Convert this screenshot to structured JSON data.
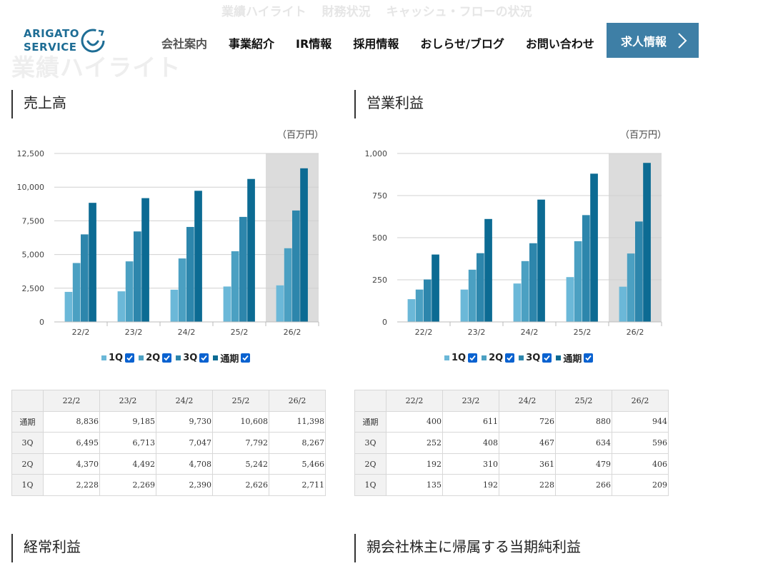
{
  "ghost": {
    "tabs": [
      "業績ハイライト",
      "財務状況",
      "キャッシュ・フローの状況"
    ],
    "title": "業績ハイライト"
  },
  "logo": {
    "line1": "ARIGATO",
    "line2": "SERVICE"
  },
  "nav": {
    "items": [
      "会社案内",
      "事業紹介",
      "IR情報",
      "採用情報",
      "おしらせ/ブログ",
      "お問い合わせ"
    ],
    "cta": "求人情報"
  },
  "colors": {
    "q1": "#6bb8d8",
    "q2": "#4ba0c2",
    "q3": "#2d86ac",
    "full": "#0c6b93",
    "accent": "#3e7fa6",
    "highlight": "#dcdcdc"
  },
  "legend": [
    "1Q",
    "2Q",
    "3Q",
    "通期"
  ],
  "sections": {
    "s1": "売上高",
    "s2": "営業利益",
    "s3": "経常利益",
    "s4": "親会社株主に帰属する当期純利益"
  },
  "unit": "（百万円）",
  "tables": {
    "row_labels": [
      "通期",
      "3Q",
      "2Q",
      "1Q"
    ]
  },
  "chart_data": [
    {
      "type": "bar",
      "title": "売上高",
      "categories": [
        "22/2",
        "23/2",
        "24/2",
        "25/2",
        "26/2"
      ],
      "series": [
        {
          "name": "1Q",
          "values": [
            2228,
            2269,
            2390,
            2626,
            2711
          ]
        },
        {
          "name": "2Q",
          "values": [
            4370,
            4492,
            4708,
            5242,
            5466
          ]
        },
        {
          "name": "3Q",
          "values": [
            6495,
            6713,
            7047,
            7792,
            8267
          ]
        },
        {
          "name": "通期",
          "values": [
            8836,
            9185,
            9730,
            10608,
            11398
          ]
        }
      ],
      "ylim": [
        0,
        12500
      ],
      "yticks": [
        "12,500",
        "10,000",
        "7,500",
        "5,000",
        "2,500",
        "0"
      ],
      "ytick_values": [
        12500,
        10000,
        7500,
        5000,
        2500,
        0
      ],
      "display": [
        [
          "8,836",
          "9,185",
          "9,730",
          "10,608",
          "11,398"
        ],
        [
          "6,495",
          "6,713",
          "7,047",
          "7,792",
          "8,267"
        ],
        [
          "4,370",
          "4,492",
          "4,708",
          "5,242",
          "5,466"
        ],
        [
          "2,228",
          "2,269",
          "2,390",
          "2,626",
          "2,711"
        ]
      ],
      "highlight_category": "26/2",
      "grid": true,
      "legend": "bottom"
    },
    {
      "type": "bar",
      "title": "営業利益",
      "categories": [
        "22/2",
        "23/2",
        "24/2",
        "25/2",
        "26/2"
      ],
      "series": [
        {
          "name": "1Q",
          "values": [
            135,
            192,
            228,
            266,
            209
          ]
        },
        {
          "name": "2Q",
          "values": [
            192,
            310,
            361,
            479,
            406
          ]
        },
        {
          "name": "3Q",
          "values": [
            252,
            408,
            467,
            634,
            596
          ]
        },
        {
          "name": "通期",
          "values": [
            400,
            611,
            726,
            880,
            944
          ]
        }
      ],
      "ylim": [
        0,
        1000
      ],
      "yticks": [
        "1,000",
        "750",
        "500",
        "250",
        "0"
      ],
      "ytick_values": [
        1000,
        750,
        500,
        250,
        0
      ],
      "display": [
        [
          "400",
          "611",
          "726",
          "880",
          "944"
        ],
        [
          "252",
          "408",
          "467",
          "634",
          "596"
        ],
        [
          "192",
          "310",
          "361",
          "479",
          "406"
        ],
        [
          "135",
          "192",
          "228",
          "266",
          "209"
        ]
      ],
      "highlight_category": "26/2",
      "grid": true,
      "legend": "bottom"
    }
  ]
}
